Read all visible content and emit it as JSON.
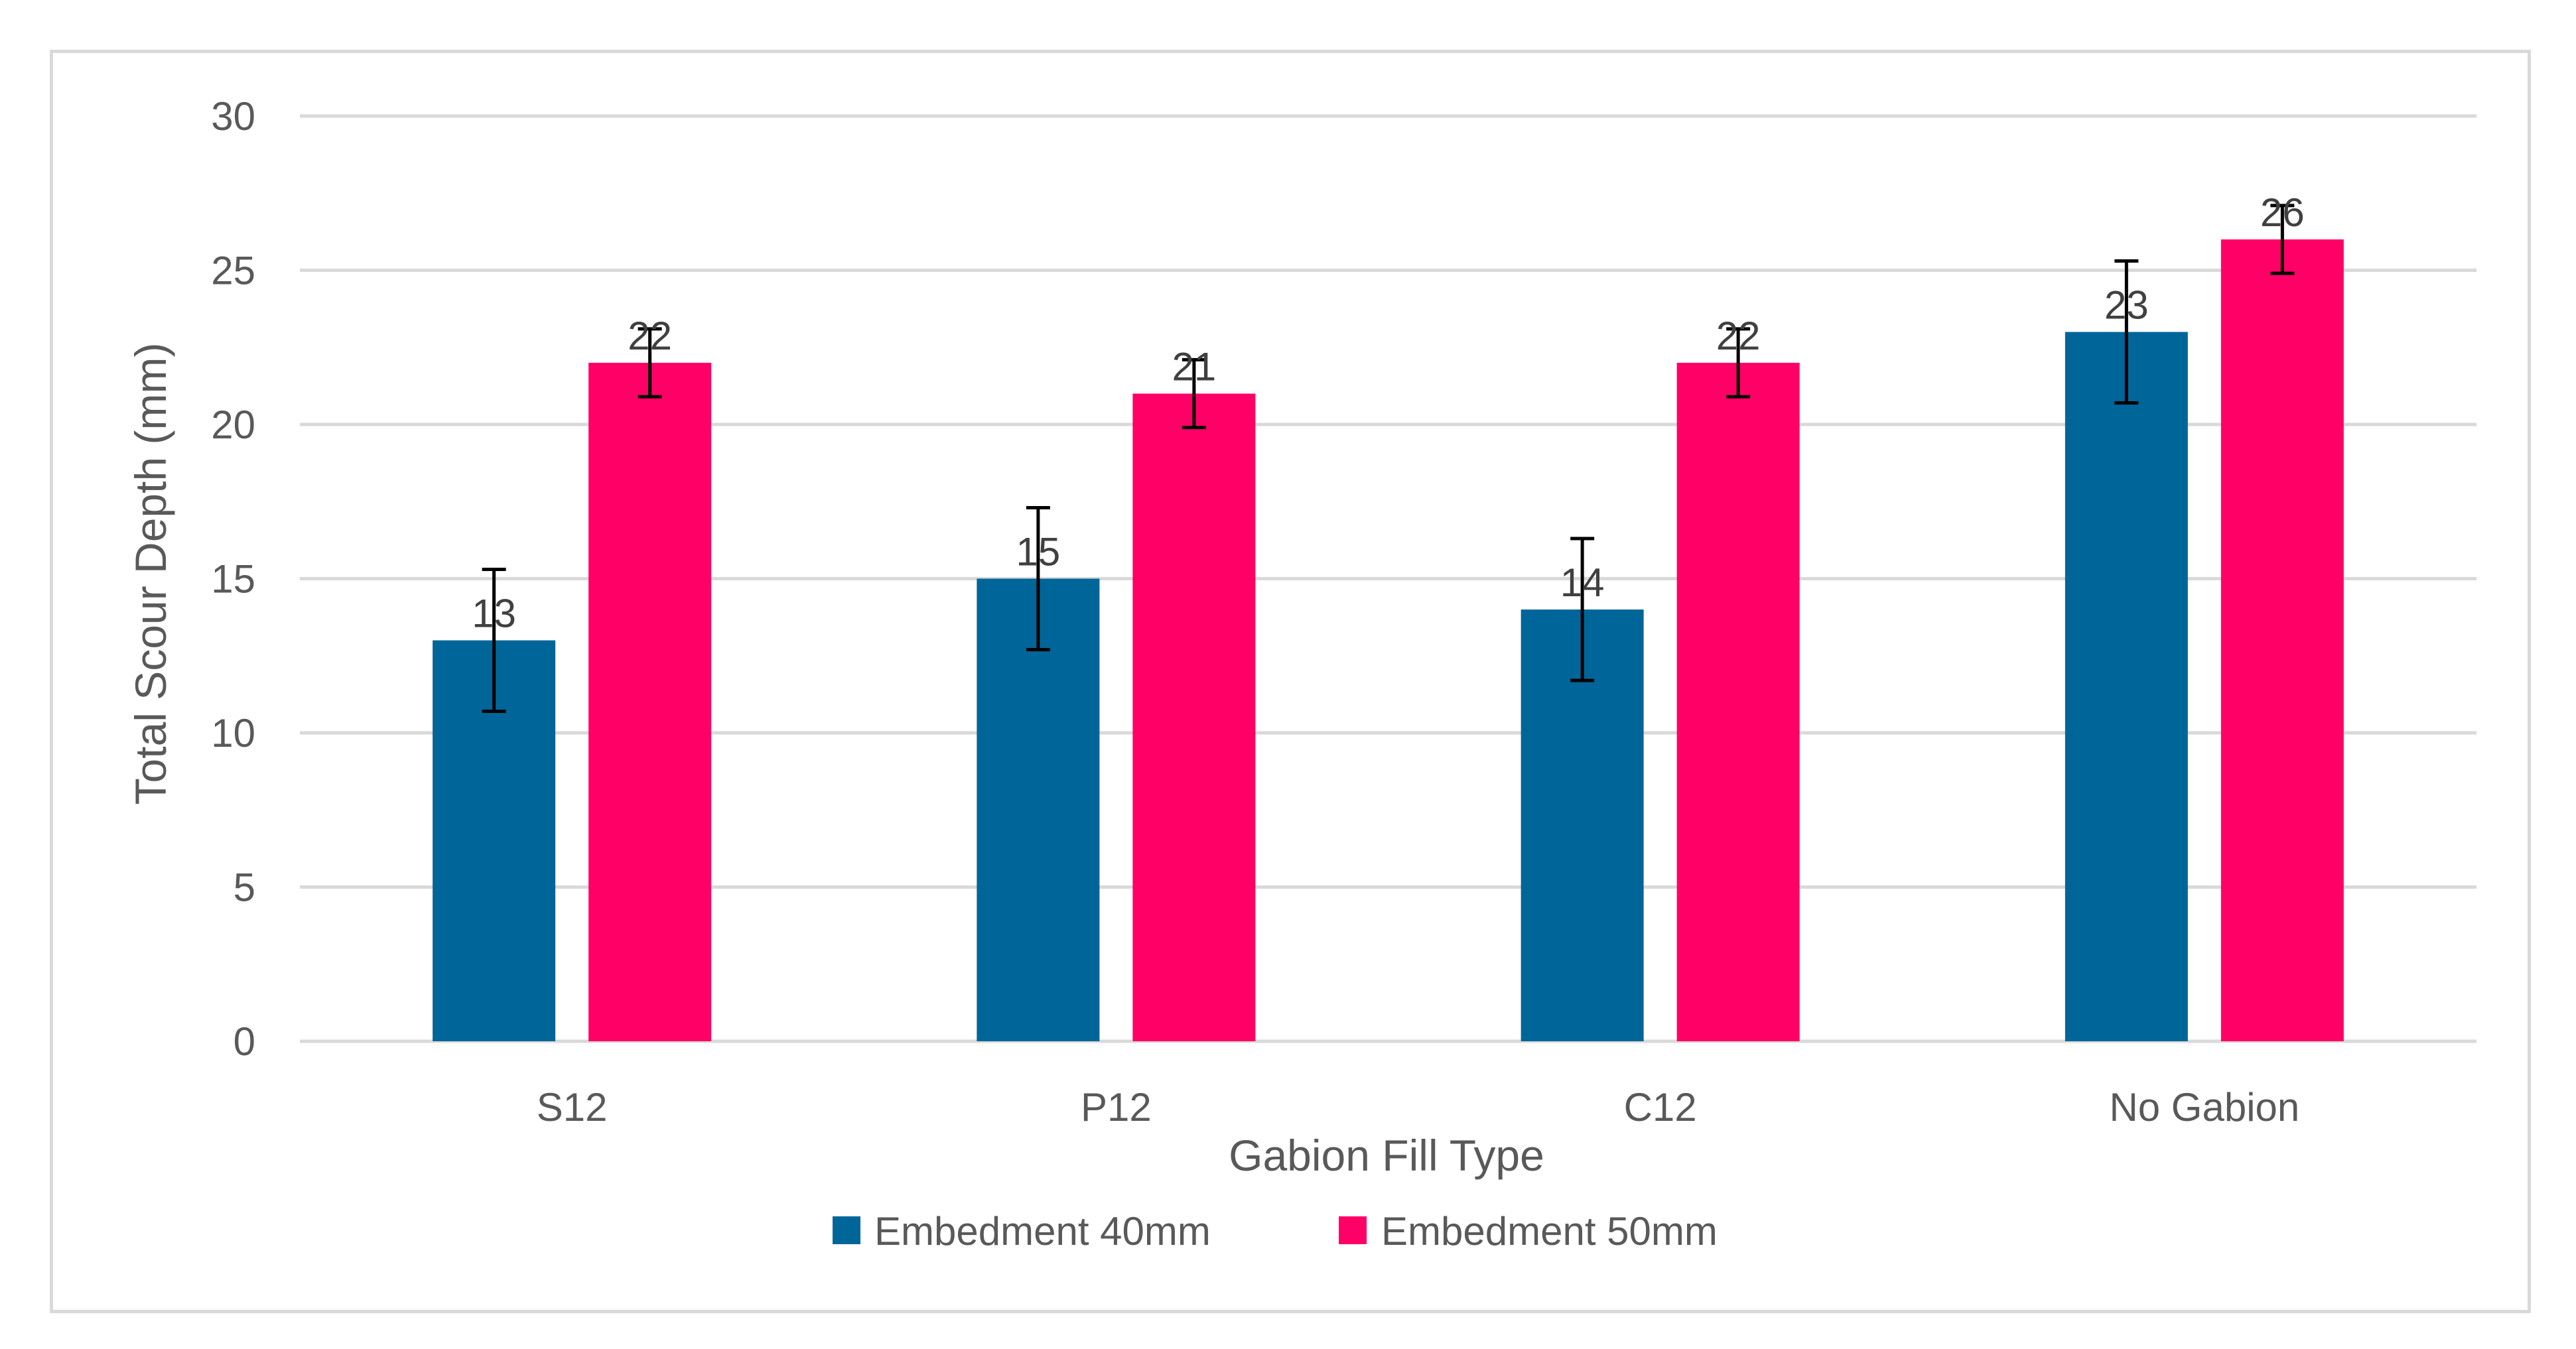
{
  "chart_data": {
    "type": "bar",
    "title": "",
    "xlabel": "Gabion Fill Type",
    "ylabel": "Total Scour Depth (mm)",
    "ylim": [
      0,
      30
    ],
    "yticks": [
      0,
      5,
      10,
      15,
      20,
      25,
      30
    ],
    "grid": true,
    "legend_position": "bottom",
    "categories": [
      "S12",
      "P12",
      "C12",
      "No Gabion"
    ],
    "series": [
      {
        "name": "Embedment 40mm",
        "color": "#006699",
        "values": [
          13,
          15,
          14,
          23
        ],
        "error": [
          2.3,
          2.3,
          2.3,
          2.3
        ]
      },
      {
        "name": "Embedment 50mm",
        "color": "#ff0066",
        "values": [
          22,
          21,
          22,
          26
        ],
        "error": [
          1.1,
          1.1,
          1.1,
          1.1
        ]
      }
    ]
  }
}
